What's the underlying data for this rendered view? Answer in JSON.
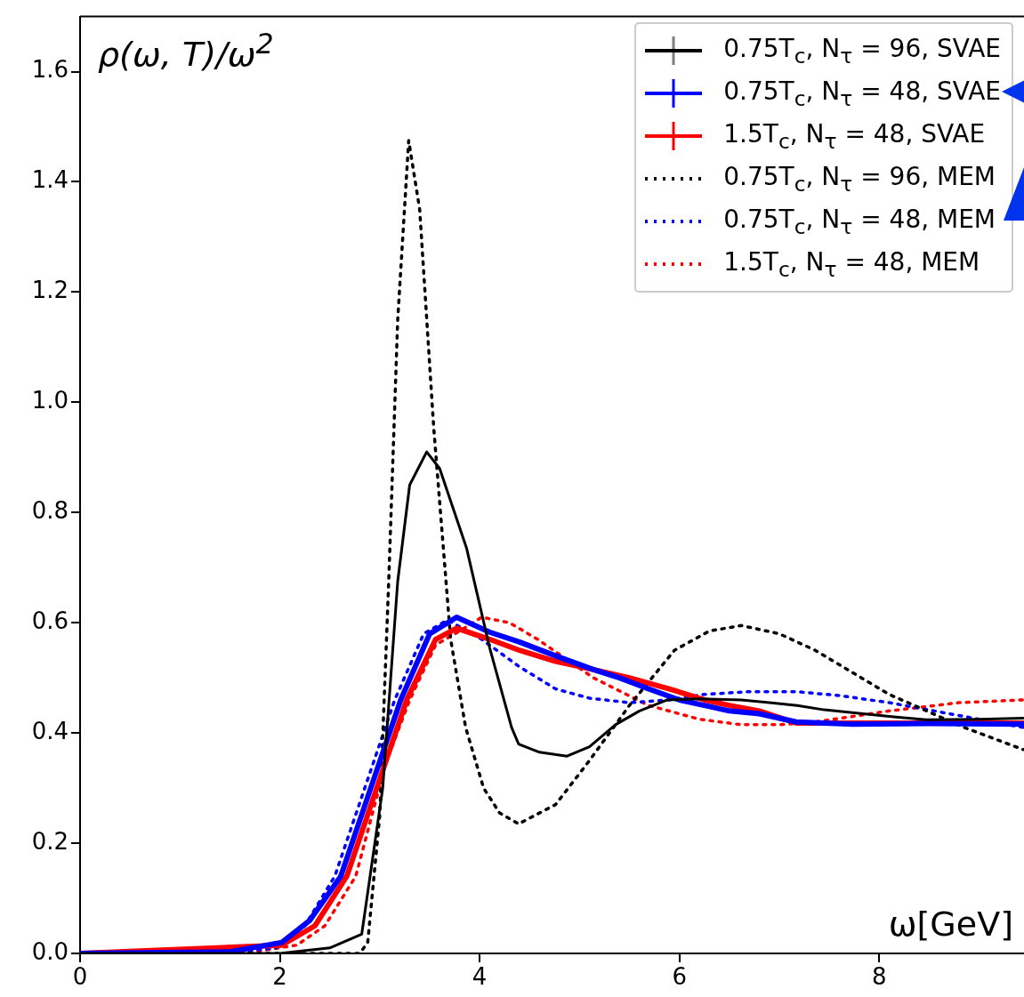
{
  "chart_data": {
    "type": "line",
    "xlabel": "ω[GeV]",
    "ylabel": "ρ(ω, T)/ω$^{2}$",
    "xlim": [
      0,
      9.45
    ],
    "xticks": [
      0,
      2,
      4,
      6,
      8
    ],
    "ylim": [
      0,
      1.7
    ],
    "yticks": [
      {
        "value": 0,
        "label": "0.0"
      },
      {
        "value": 0.2,
        "label": "0.2"
      },
      {
        "value": 0.4,
        "label": "0.4"
      },
      {
        "value": 0.6,
        "label": "0.6"
      },
      {
        "value": 0.8,
        "label": "0.8"
      },
      {
        "value": 1.0,
        "label": "1.0"
      },
      {
        "value": 1.2,
        "label": "1.2"
      },
      {
        "value": 1.4,
        "label": "1.4"
      },
      {
        "value": 1.6,
        "label": "1.6"
      }
    ],
    "grid": false,
    "legend": "top right",
    "marker": "none",
    "series": [
      {
        "name": "0.75T$_{c}$, N$_{τ}$ = 96, SVAE",
        "color": "#000000",
        "line_style": "solid",
        "x": [
          0,
          2.0,
          2.5,
          2.82,
          3.03,
          3.18,
          3.3,
          3.47,
          3.6,
          3.87,
          4.1,
          4.32,
          4.39,
          4.6,
          4.875,
          5.1,
          5.36,
          5.6,
          5.88,
          6.2,
          6.62,
          6.9,
          7.18,
          7.45,
          7.73,
          8.1,
          8.47,
          9.0,
          9.44
        ],
        "values": [
          0,
          0,
          0.01,
          0.035,
          0.3,
          0.675,
          0.85,
          0.91,
          0.88,
          0.735,
          0.555,
          0.41,
          0.38,
          0.365,
          0.358,
          0.375,
          0.415,
          0.44,
          0.46,
          0.462,
          0.46,
          0.455,
          0.45,
          0.442,
          0.437,
          0.43,
          0.424,
          0.425,
          0.427
        ]
      },
      {
        "name": "0.75T$_{c}$, N$_{τ}$ = 48, SVAE",
        "color": "#0000ff",
        "line_style": "solid",
        "x": [
          0,
          1.5,
          2.02,
          2.3,
          2.61,
          2.91,
          3.21,
          3.5,
          3.77,
          4.1,
          4.4,
          4.76,
          5.14,
          5.4,
          5.69,
          6.0,
          6.25,
          6.5,
          6.8,
          7.17,
          7.73,
          8.5,
          9.44
        ],
        "values": [
          0,
          0.003,
          0.02,
          0.06,
          0.14,
          0.3,
          0.46,
          0.58,
          0.61,
          0.583,
          0.565,
          0.54,
          0.515,
          0.5,
          0.48,
          0.46,
          0.45,
          0.44,
          0.435,
          0.42,
          0.416,
          0.417,
          0.416
        ]
      },
      {
        "name": "1.5T$_{c}$, N$_{τ}$ = 48, SVAE",
        "color": "#ff0000",
        "line_style": "solid",
        "x": [
          0,
          2.02,
          2.35,
          2.67,
          2.97,
          3.27,
          3.56,
          3.77,
          4.1,
          4.4,
          4.76,
          5.14,
          5.5,
          5.9,
          6.25,
          6.5,
          6.8,
          7.17,
          7.73,
          9.44
        ],
        "values": [
          0,
          0.015,
          0.05,
          0.14,
          0.3,
          0.46,
          0.57,
          0.59,
          0.57,
          0.55,
          0.53,
          0.515,
          0.5,
          0.48,
          0.46,
          0.45,
          0.44,
          0.418,
          0.418,
          0.418
        ]
      },
      {
        "name": "0.75T$_{c}$, N$_{τ}$ = 96, MEM",
        "color": "#000000",
        "line_style": "dotted",
        "x": [
          0,
          2.8,
          2.88,
          3.0,
          3.09,
          3.18,
          3.29,
          3.4,
          3.54,
          3.71,
          3.86,
          4.04,
          4.2,
          4.39,
          4.76,
          5.1,
          5.5,
          5.95,
          6.3,
          6.62,
          7.0,
          7.36,
          8.1,
          8.85,
          9.44
        ],
        "values": [
          0,
          0,
          0.02,
          0.25,
          0.675,
          1.15,
          1.475,
          1.35,
          0.955,
          0.57,
          0.41,
          0.3,
          0.255,
          0.235,
          0.27,
          0.35,
          0.45,
          0.55,
          0.585,
          0.595,
          0.58,
          0.55,
          0.47,
          0.41,
          0.37
        ]
      },
      {
        "name": "0.75T$_{c}$, N$_{τ}$ = 48, MEM",
        "color": "#0000ff",
        "line_style": "dotted",
        "x": [
          0,
          1.5,
          1.96,
          2.25,
          2.55,
          2.85,
          3.15,
          3.44,
          3.68,
          4.02,
          4.4,
          4.76,
          5.1,
          5.5,
          5.9,
          6.25,
          6.7,
          7.17,
          7.6,
          8.1,
          8.85,
          9.44
        ],
        "values": [
          0,
          0.002,
          0.01,
          0.05,
          0.14,
          0.3,
          0.46,
          0.58,
          0.605,
          0.57,
          0.52,
          0.48,
          0.463,
          0.455,
          0.46,
          0.47,
          0.475,
          0.475,
          0.468,
          0.455,
          0.43,
          0.41
        ]
      },
      {
        "name": "1.5T$_{c}$, N$_{τ}$ = 48, MEM",
        "color": "#ff0000",
        "line_style": "dotted",
        "x": [
          0,
          1.7,
          2.17,
          2.45,
          2.76,
          3.06,
          3.3,
          3.56,
          3.8,
          4.02,
          4.3,
          4.58,
          5.14,
          5.69,
          6.2,
          6.62,
          7.0,
          7.36,
          8.1,
          8.8,
          9.44
        ],
        "values": [
          0,
          0.002,
          0.015,
          0.05,
          0.14,
          0.345,
          0.46,
          0.56,
          0.585,
          0.61,
          0.6,
          0.57,
          0.5,
          0.45,
          0.425,
          0.415,
          0.415,
          0.42,
          0.44,
          0.455,
          0.46
        ]
      }
    ]
  }
}
